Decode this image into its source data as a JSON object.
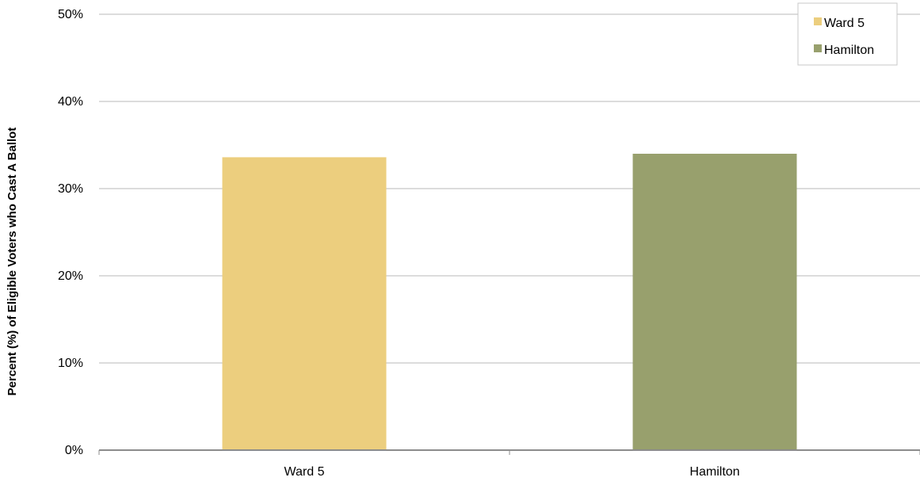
{
  "chart_data": {
    "type": "bar",
    "title": "",
    "xlabel": "",
    "ylabel": "Percent (%) of Eligible Voters who Cast A Ballot",
    "categories": [
      "Ward 5",
      "Hamilton"
    ],
    "values": [
      33.6,
      34.0
    ],
    "colors": [
      "#ecce7e",
      "#98a06d"
    ],
    "ylim": [
      0,
      50
    ],
    "yticks": [
      0,
      10,
      20,
      30,
      40,
      50
    ],
    "ytick_labels": [
      "0%",
      "10%",
      "20%",
      "30%",
      "40%",
      "50%"
    ],
    "grid": true,
    "legend": {
      "position": "top-right",
      "entries": [
        {
          "label": "Ward 5",
          "color": "#ecce7e"
        },
        {
          "label": "Hamilton",
          "color": "#98a06d"
        }
      ]
    }
  }
}
